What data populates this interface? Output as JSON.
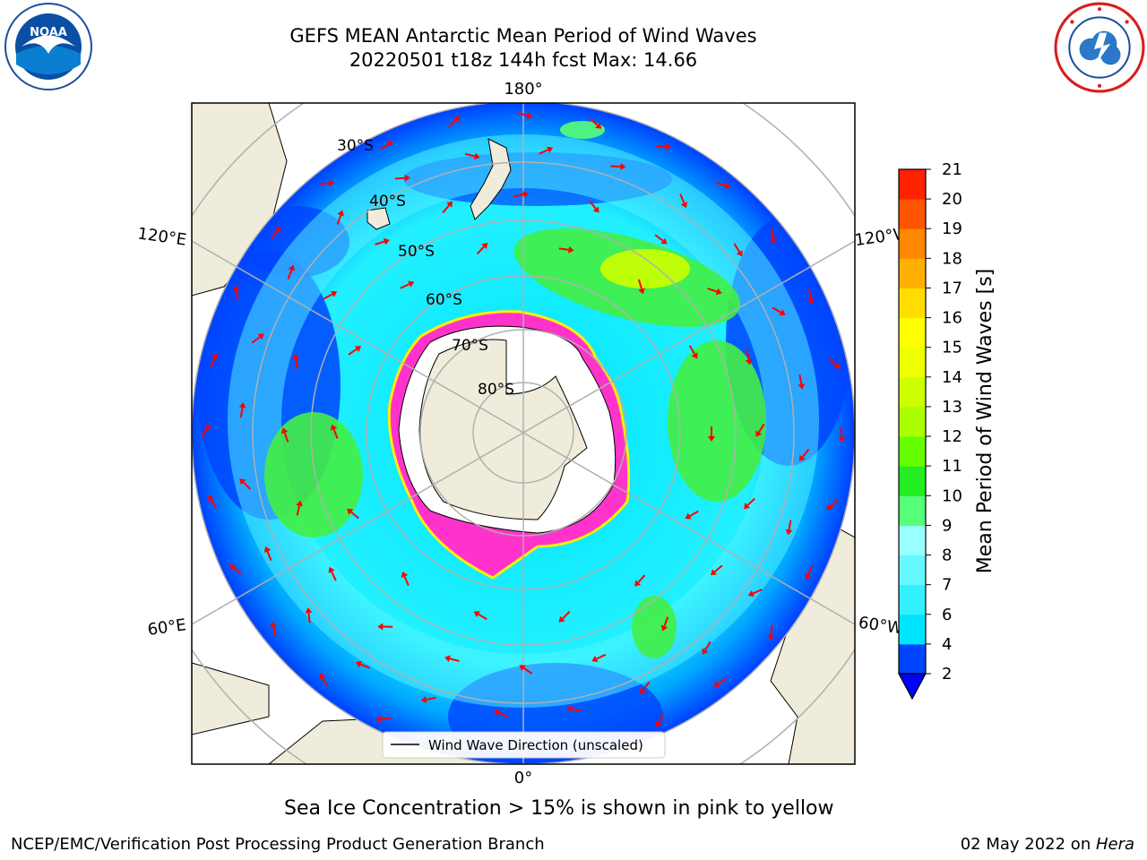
{
  "title": {
    "line1": "GEFS MEAN Antarctic Mean Period of Wind Waves",
    "line2": "20220501 t18z 144h fcst   Max: 14.66"
  },
  "logos": {
    "left": "noaa-logo",
    "left_text": "NOAA",
    "right": "national-weather-service-logo"
  },
  "map": {
    "projection": "south-polar-stereographic",
    "longitude_labels": {
      "top": "180°",
      "bottom": "0°",
      "upper_left": "120°E",
      "lower_left": "60°E",
      "upper_right": "120°W",
      "lower_right": "60°W"
    },
    "latitude_labels": [
      "30°S",
      "40°S",
      "50°S",
      "60°S",
      "70°S",
      "80°S"
    ],
    "legend": "Wind Wave Direction (unscaled)",
    "colors": {
      "land": "#efecdb",
      "ocean_low": "#0040ff",
      "ocean_mid": "#00e5ff",
      "ocean_high": "#66ff66",
      "sea_ice_edge": "#ff33cc",
      "arrow": "#ff0000"
    }
  },
  "colorbar": {
    "label": "Mean Period of Wind Waves [s]",
    "ticks": [
      "2",
      "4",
      "6",
      "7",
      "8",
      "9",
      "10",
      "11",
      "12",
      "13",
      "14",
      "15",
      "16",
      "17",
      "18",
      "19",
      "20",
      "21"
    ],
    "colors": [
      "#0044ff",
      "#00e5ff",
      "#33f0ff",
      "#66f7ff",
      "#99ffff",
      "#55ff77",
      "#22ee22",
      "#66ff00",
      "#aaff00",
      "#ccff00",
      "#eeff00",
      "#ffff00",
      "#ffdd00",
      "#ffb000",
      "#ff8800",
      "#ff5500",
      "#ff2200",
      "#ff0000"
    ]
  },
  "notes": {
    "sea_ice": "Sea Ice Concentration > 15% is shown in pink to yellow",
    "credit": "NCEP/EMC/Verification Post Processing Product Generation Branch",
    "date": "02 May 2022 on ",
    "machine": "Hera"
  }
}
